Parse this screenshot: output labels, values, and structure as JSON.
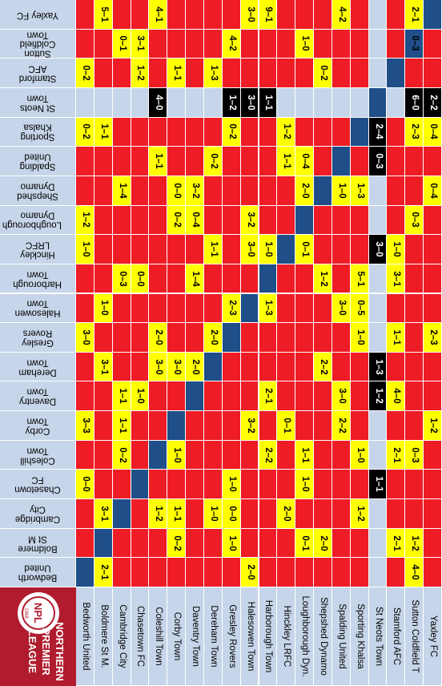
{
  "colors": {
    "home": "#1f4e89",
    "blue_header": "#c6d5e9",
    "red": "#ee1c25",
    "yellow": "#ffff00",
    "black": "#000000",
    "logo_bg": "#b01c2e"
  },
  "logo": {
    "line1": "NORTHERN",
    "line2": "PREMIER",
    "line3": "LEAGUE",
    "badge": "NPL",
    "year": "1968"
  },
  "teams": [
    "Bedworth United",
    "Boldmere St M.",
    "Cambridge City",
    "Chasetown FC",
    "Coleshill Town",
    "Corby Town",
    "Daventry Town",
    "Dereham Town",
    "Gresley Rovers",
    "Halesowen Town",
    "Harborough Town",
    "Hinckley LRFC",
    "Loughborough Dyn.",
    "Shepshed Dynamo",
    "Spalding United",
    "Sporting Khalsa",
    "St Neots Town",
    "Stamford AFC",
    "Sutton Coldfield T",
    "Yaxley FC"
  ],
  "row_teams": [
    "Bedworth United",
    "Boldmere St M",
    "Cambridge City",
    "Chasetown FC",
    "Coleshill Town",
    "Corby Town",
    "Daventry Town",
    "Dereham Town",
    "Gresley Rovers",
    "Halesowen Town",
    "Harborough Town",
    "Hinckley LRFC",
    "Loughborough Dynamo",
    "Shepshed Dynamo",
    "Spalding United",
    "Sporting Khalsa",
    "St Neots Town",
    "Stamford AFC",
    "Sutton Coldfield Town",
    "Yaxley FC"
  ],
  "cells": [
    [
      "",
      "2–1",
      "",
      "",
      "",
      "",
      "",
      "",
      "",
      "2–0",
      "",
      "",
      "",
      "",
      "",
      "",
      "",
      "",
      "4–0",
      ""
    ],
    [
      "",
      "",
      "",
      "",
      "",
      "0–2",
      "",
      "",
      "1–0",
      "",
      "",
      "",
      "0–1",
      "2–0",
      "",
      "",
      "",
      "2–1",
      "1–2",
      ""
    ],
    [
      "",
      "3–1",
      "",
      "",
      "1–2",
      "1–1",
      "",
      "1–0",
      "0–0",
      "",
      "",
      "2–0",
      "",
      "",
      "",
      "1–2",
      "",
      "",
      "",
      ""
    ],
    [
      "0–0",
      "",
      "",
      "",
      "",
      "",
      "",
      "",
      "1–0",
      "",
      "",
      "",
      "1–0",
      "",
      "",
      "",
      "1–1",
      "",
      "",
      ""
    ],
    [
      "",
      "",
      "0–2",
      "",
      "",
      "1–0",
      "",
      "",
      "",
      "",
      "2–2",
      "",
      "1–1",
      "",
      "",
      "1–0",
      "",
      "2–1",
      "0–3",
      ""
    ],
    [
      "3–3",
      "",
      "1–1",
      "",
      "",
      "",
      "",
      "",
      "",
      "3–2",
      "",
      "0–1",
      "",
      "",
      "2–2",
      "",
      "",
      "",
      "",
      "1–2"
    ],
    [
      "",
      "",
      "1–1",
      "1–0",
      "",
      "",
      "",
      "",
      "",
      "",
      "2–1",
      "",
      "",
      "",
      "3–0",
      "",
      "1–2",
      "4–0",
      "",
      ""
    ],
    [
      "",
      "3–1",
      "",
      "",
      "3–0",
      "3–0",
      "2–0",
      "",
      "",
      "",
      "",
      "",
      "",
      "2–2",
      "",
      "",
      "1–3",
      "",
      "",
      ""
    ],
    [
      "3–0",
      "",
      "",
      "",
      "2–0",
      "",
      "",
      "2–0",
      "",
      "",
      "",
      "",
      "",
      "",
      "",
      "1–0",
      "",
      "1–1",
      "",
      "2–3"
    ],
    [
      "",
      "1–0",
      "",
      "",
      "",
      "",
      "",
      "",
      "2–3",
      "",
      "1–3",
      "",
      "",
      "",
      "3–0",
      "0–5",
      "",
      "",
      "",
      ""
    ],
    [
      "",
      "",
      "0–3",
      "0–0",
      "",
      "",
      "1–4",
      "",
      "",
      "",
      "",
      "",
      "",
      "1–2",
      "",
      "5–1",
      "",
      "3–1",
      "",
      ""
    ],
    [
      "1–0",
      "",
      "",
      "",
      "",
      "",
      "",
      "1–1",
      "",
      "3–0",
      "1–0",
      "",
      "0–1",
      "",
      "",
      "",
      "3–0",
      "1–0",
      "",
      ""
    ],
    [
      "1–2",
      "",
      "",
      "",
      "",
      "0–2",
      "0–4",
      "",
      "",
      "3–2",
      "",
      "",
      "",
      "",
      "",
      "",
      "",
      "",
      "0–3",
      ""
    ],
    [
      "",
      "",
      "1–4",
      "",
      "",
      "0–0",
      "3–2",
      "",
      "",
      "",
      "",
      "",
      "2–0",
      "",
      "1–0",
      "1–3",
      "",
      "",
      "",
      "0–4"
    ],
    [
      "",
      "",
      "",
      "",
      "1–1",
      "",
      "",
      "0–2",
      "",
      "",
      "",
      "1–1",
      "0–4",
      "",
      "",
      "",
      "0–3",
      "",
      "",
      ""
    ],
    [
      "0–2",
      "1–1",
      "",
      "",
      "",
      "",
      "",
      "",
      "0–2",
      "",
      "",
      "1–2",
      "",
      "",
      "",
      "",
      "2–4",
      "",
      "2–3",
      "0–4"
    ],
    [
      "",
      "",
      "",
      "",
      "4–0",
      "",
      "",
      "",
      "1–2",
      "3–0",
      "1–1",
      "",
      "",
      "",
      "",
      "",
      "",
      "",
      "6–0",
      "2–2"
    ],
    [
      "0–2",
      "",
      "",
      "1–2",
      "",
      "1–1",
      "",
      "1–3",
      "",
      "",
      "",
      "",
      "",
      "0–2",
      "",
      "",
      "",
      "",
      "",
      ""
    ],
    [
      "",
      "",
      "0–1",
      "3–1",
      "",
      "",
      "",
      "",
      "4–2",
      "",
      "",
      "",
      "1–0",
      "",
      "",
      "",
      "",
      "",
      "0–3",
      ""
    ],
    [
      "",
      "5–1",
      "",
      "",
      "4–1",
      "",
      "",
      "",
      "",
      "3–0",
      "9–1",
      "",
      "",
      "",
      "4–2",
      "",
      "",
      "",
      "2–1",
      ""
    ]
  ],
  "black_cells": [
    [
      16,
      4
    ],
    [
      16,
      8
    ],
    [
      16,
      9
    ],
    [
      16,
      10
    ],
    [
      16,
      18
    ],
    [
      16,
      19
    ],
    [
      15,
      16
    ],
    [
      14,
      16
    ],
    [
      11,
      16
    ],
    [
      7,
      16
    ],
    [
      6,
      16
    ],
    [
      3,
      16
    ]
  ],
  "blue_home_diag": true
}
